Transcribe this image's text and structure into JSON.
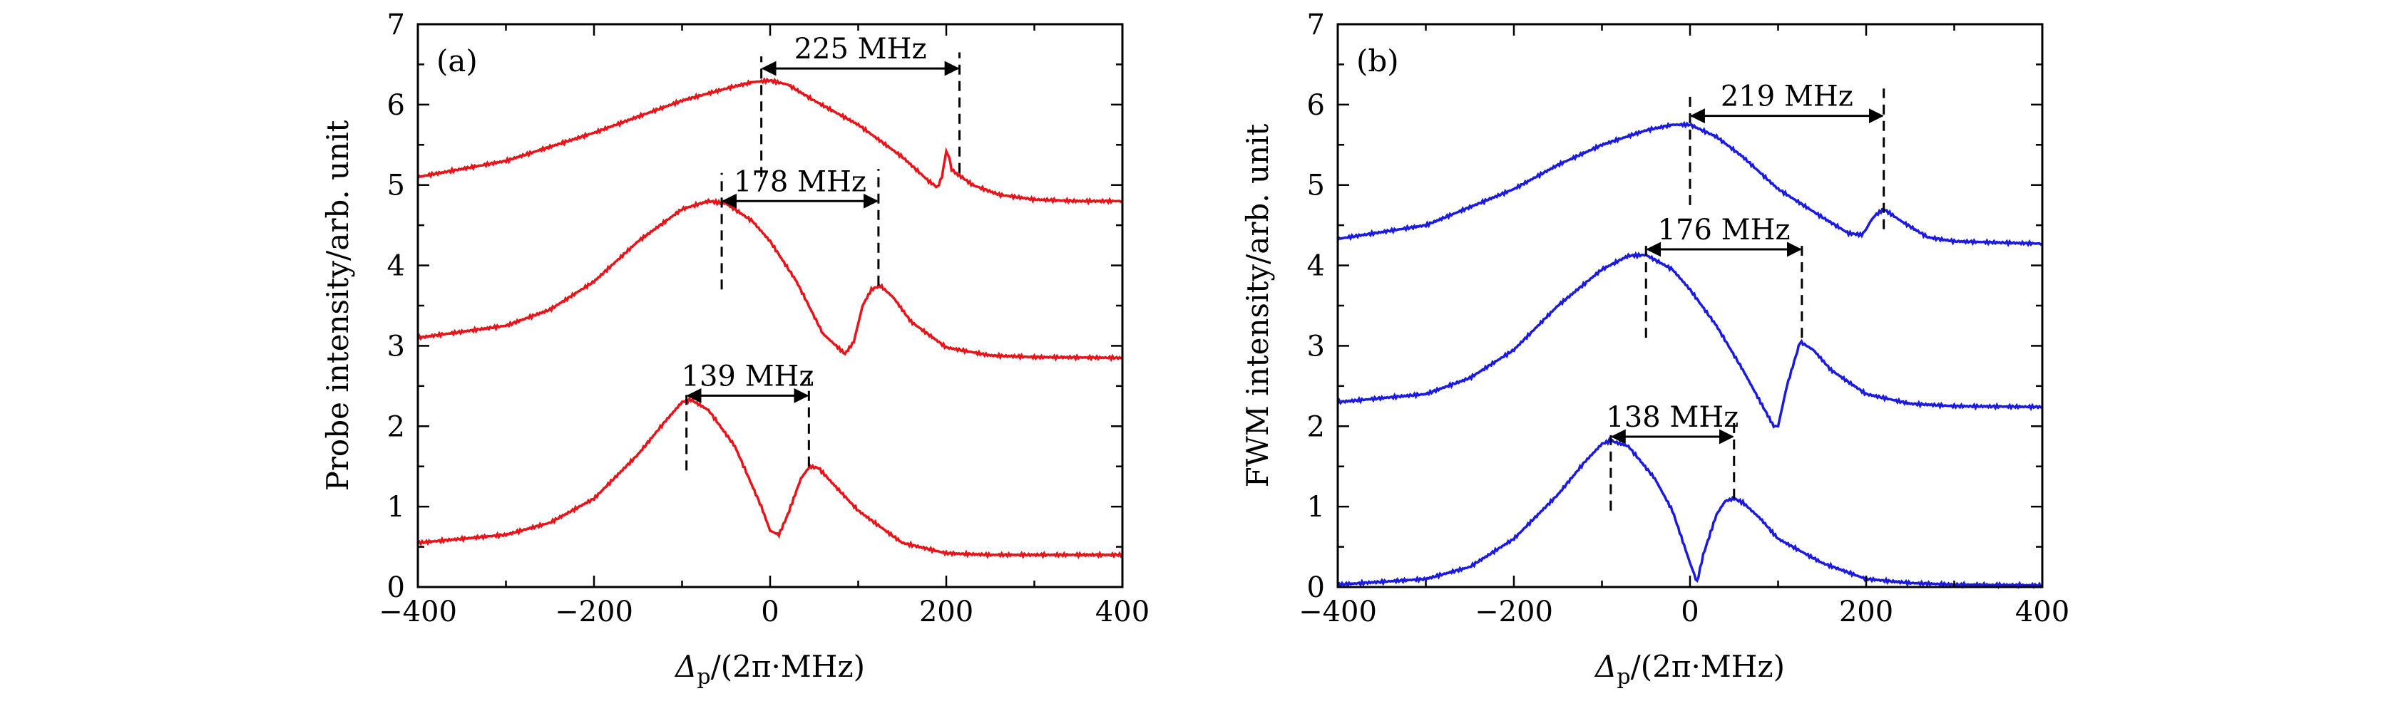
{
  "chart_data": [
    {
      "panel": "a",
      "type": "line",
      "panel_label": "(a)",
      "xlabel": "Δp/(2π·MHz)",
      "xlabel_main": "Δ",
      "xlabel_sub": "p",
      "xlabel_rest": "/(2π·MHz)",
      "ylabel": "Probe intensity/arb. unit",
      "xlim": [
        -400,
        400
      ],
      "ylim": [
        0,
        7
      ],
      "xticks": [
        -400,
        -200,
        0,
        200,
        400
      ],
      "xtick_labels": [
        "−400",
        "−200",
        "0",
        "200",
        "400"
      ],
      "yticks": [
        0,
        1,
        2,
        3,
        4,
        5,
        6,
        7
      ],
      "ytick_labels": [
        "0",
        "1",
        "2",
        "3",
        "4",
        "5",
        "6",
        "7"
      ],
      "color": "#e8141a",
      "series": [
        {
          "name": "top",
          "x": [
            -400,
            -300,
            -200,
            -150,
            -100,
            -50,
            -20,
            0,
            20,
            50,
            100,
            150,
            180,
            190,
            195,
            200,
            203,
            206,
            210,
            215,
            230,
            260,
            300,
            350,
            400
          ],
          "y": [
            5.1,
            5.3,
            5.65,
            5.85,
            6.05,
            6.2,
            6.28,
            6.3,
            6.25,
            6.05,
            5.75,
            5.35,
            5.05,
            4.97,
            5.1,
            5.42,
            5.35,
            5.2,
            5.15,
            5.12,
            5.0,
            4.88,
            4.82,
            4.8,
            4.8
          ]
        },
        {
          "name": "middle",
          "x": [
            -400,
            -300,
            -250,
            -200,
            -150,
            -100,
            -70,
            -50,
            -20,
            0,
            30,
            60,
            85,
            95,
            105,
            115,
            125,
            140,
            160,
            200,
            250,
            300,
            400
          ],
          "y": [
            3.1,
            3.25,
            3.45,
            3.8,
            4.3,
            4.7,
            4.8,
            4.77,
            4.55,
            4.3,
            3.8,
            3.15,
            2.9,
            3.05,
            3.5,
            3.7,
            3.75,
            3.6,
            3.3,
            2.98,
            2.88,
            2.86,
            2.85
          ]
        },
        {
          "name": "bottom",
          "x": [
            -400,
            -300,
            -250,
            -200,
            -150,
            -120,
            -100,
            -90,
            -70,
            -40,
            -10,
            0,
            10,
            20,
            35,
            45,
            55,
            70,
            100,
            150,
            200,
            250,
            300,
            400
          ],
          "y": [
            0.55,
            0.65,
            0.8,
            1.1,
            1.65,
            2.05,
            2.3,
            2.33,
            2.2,
            1.75,
            1.0,
            0.7,
            0.65,
            0.9,
            1.35,
            1.5,
            1.48,
            1.3,
            0.95,
            0.55,
            0.42,
            0.4,
            0.4,
            0.4
          ]
        }
      ],
      "annotations": [
        {
          "label": "225 MHz",
          "x1": -10,
          "x2": 215,
          "y": 6.45,
          "vlines": [
            {
              "x": -10,
              "y1": 5.1,
              "y2": 6.6
            },
            {
              "x": 215,
              "y1": 5.15,
              "y2": 6.65
            }
          ]
        },
        {
          "label": "178 MHz",
          "x1": -55,
          "x2": 123,
          "y": 4.8,
          "vlines": [
            {
              "x": -55,
              "y1": 3.7,
              "y2": 5.15
            },
            {
              "x": 123,
              "y1": 3.75,
              "y2": 5.2
            }
          ]
        },
        {
          "label": "139 MHz",
          "x1": -95,
          "x2": 44,
          "y": 2.38,
          "vlines": [
            {
              "x": -95,
              "y1": 1.45,
              "y2": 2.45
            },
            {
              "x": 44,
              "y1": 1.5,
              "y2": 2.6
            }
          ]
        }
      ]
    },
    {
      "panel": "b",
      "type": "line",
      "panel_label": "(b)",
      "xlabel": "Δp/(2π·MHz)",
      "xlabel_main": "Δ",
      "xlabel_sub": "p",
      "xlabel_rest": "/(2π·MHz)",
      "ylabel": "FWM intensity/arb. unit",
      "xlim": [
        -400,
        400
      ],
      "ylim": [
        0,
        7
      ],
      "xticks": [
        -400,
        -200,
        0,
        200,
        400
      ],
      "xtick_labels": [
        "−400",
        "−200",
        "0",
        "200",
        "400"
      ],
      "yticks": [
        0,
        1,
        2,
        3,
        4,
        5,
        6,
        7
      ],
      "ytick_labels": [
        "0",
        "1",
        "2",
        "3",
        "4",
        "5",
        "6",
        "7"
      ],
      "color": "#1a1ae0",
      "series": [
        {
          "name": "top",
          "x": [
            -400,
            -300,
            -200,
            -150,
            -100,
            -50,
            -20,
            0,
            30,
            60,
            100,
            150,
            180,
            195,
            200,
            205,
            210,
            220,
            240,
            270,
            300,
            400
          ],
          "y": [
            4.33,
            4.5,
            4.95,
            5.25,
            5.5,
            5.68,
            5.75,
            5.75,
            5.6,
            5.35,
            4.95,
            4.6,
            4.4,
            4.38,
            4.45,
            4.55,
            4.62,
            4.7,
            4.55,
            4.35,
            4.3,
            4.27
          ]
        },
        {
          "name": "middle",
          "x": [
            -400,
            -300,
            -250,
            -200,
            -150,
            -100,
            -70,
            -50,
            -20,
            0,
            30,
            60,
            80,
            95,
            100,
            110,
            125,
            140,
            160,
            200,
            250,
            300,
            400
          ],
          "y": [
            2.3,
            2.4,
            2.6,
            2.95,
            3.5,
            3.95,
            4.12,
            4.13,
            3.95,
            3.7,
            3.25,
            2.7,
            2.3,
            2.0,
            2.0,
            2.5,
            3.05,
            2.95,
            2.7,
            2.4,
            2.28,
            2.25,
            2.24
          ]
        },
        {
          "name": "bottom",
          "x": [
            -400,
            -300,
            -250,
            -200,
            -150,
            -120,
            -100,
            -90,
            -70,
            -40,
            -20,
            0,
            8,
            15,
            30,
            40,
            50,
            60,
            80,
            100,
            150,
            200,
            250,
            300,
            400
          ],
          "y": [
            0.03,
            0.1,
            0.25,
            0.6,
            1.15,
            1.55,
            1.78,
            1.82,
            1.75,
            1.35,
            0.95,
            0.3,
            0.06,
            0.4,
            0.9,
            1.07,
            1.1,
            1.05,
            0.85,
            0.6,
            0.3,
            0.1,
            0.05,
            0.03,
            0.02
          ]
        }
      ],
      "annotations": [
        {
          "label": "219 MHz",
          "x1": 0,
          "x2": 220,
          "y": 5.86,
          "vlines": [
            {
              "x": 0,
              "y1": 4.75,
              "y2": 6.1
            },
            {
              "x": 220,
              "y1": 4.45,
              "y2": 6.2
            }
          ]
        },
        {
          "label": "176 MHz",
          "x1": -50,
          "x2": 127,
          "y": 4.2,
          "vlines": [
            {
              "x": -50,
              "y1": 3.1,
              "y2": 4.25
            },
            {
              "x": 127,
              "y1": 3.1,
              "y2": 4.3
            }
          ]
        },
        {
          "label": "138 MHz",
          "x1": -90,
          "x2": 50,
          "y": 1.87,
          "vlines": [
            {
              "x": -90,
              "y1": 0.95,
              "y2": 1.95
            },
            {
              "x": 50,
              "y1": 1.1,
              "y2": 2.05
            }
          ]
        }
      ]
    }
  ]
}
